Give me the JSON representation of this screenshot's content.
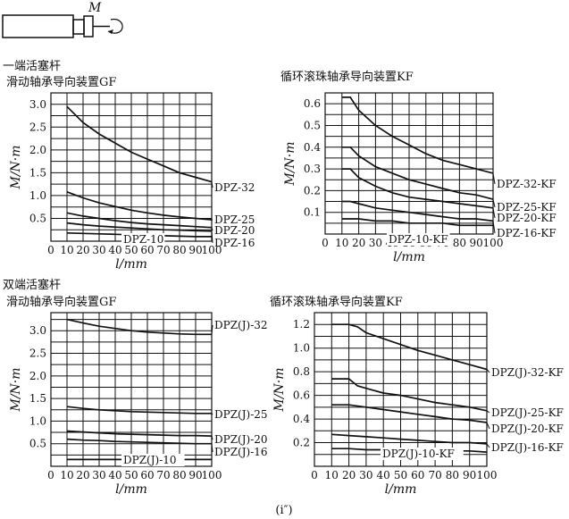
{
  "figure_label": "(i″)",
  "moment_symbol": "M",
  "sections": [
    {
      "title": "一端活塞杆"
    },
    {
      "title": "双端活塞杆"
    }
  ],
  "chart_data": [
    {
      "type": "line",
      "title": "滑动轴承导向装置GF",
      "xlabel": "l/mm",
      "ylabel": "M/N·m",
      "xlim": [
        0,
        100
      ],
      "ylim": [
        0,
        3.25
      ],
      "x_ticks": [
        0,
        10,
        20,
        30,
        40,
        50,
        60,
        70,
        80,
        90,
        100
      ],
      "y_ticks": [
        0.5,
        1.0,
        1.5,
        2.0,
        2.5,
        3.0
      ],
      "y_tick_labels": [
        "0.5",
        "1.0",
        "1.5",
        "2.0",
        "2.5",
        "3.0"
      ],
      "grid": true,
      "series": [
        {
          "name": "DPZ-32",
          "x": [
            10,
            20,
            30,
            40,
            50,
            60,
            70,
            80,
            90,
            100
          ],
          "values": [
            2.95,
            2.6,
            2.35,
            2.15,
            1.95,
            1.8,
            1.65,
            1.5,
            1.4,
            1.3
          ]
        },
        {
          "name": "DPZ-25",
          "x": [
            10,
            20,
            30,
            40,
            50,
            60,
            70,
            80,
            90,
            100
          ],
          "values": [
            1.08,
            0.95,
            0.84,
            0.76,
            0.68,
            0.62,
            0.57,
            0.53,
            0.5,
            0.47
          ]
        },
        {
          "name": "DPZ-20",
          "x": [
            10,
            20,
            30,
            40,
            50,
            60,
            70,
            80,
            90,
            100
          ],
          "values": [
            0.62,
            0.55,
            0.5,
            0.45,
            0.41,
            0.38,
            0.36,
            0.34,
            0.32,
            0.3
          ]
        },
        {
          "name": "DPZ-16",
          "x": [
            10,
            20,
            30,
            40,
            50,
            60,
            70,
            80,
            90,
            100
          ],
          "values": [
            0.4,
            0.36,
            0.33,
            0.31,
            0.29,
            0.27,
            0.25,
            0.24,
            0.23,
            0.22
          ]
        },
        {
          "name": "DPZ-10",
          "x": [
            10,
            20,
            30,
            40,
            50,
            60,
            70,
            80,
            90,
            100
          ],
          "values": [
            0.18,
            0.17,
            0.16,
            0.15,
            0.14,
            0.13,
            0.12,
            0.11,
            0.1,
            0.1
          ]
        }
      ]
    },
    {
      "type": "line",
      "title": "循环滚珠轴承导向装置KF",
      "xlabel": "l/mm",
      "ylabel": "M/N·m",
      "xlim": [
        0,
        100
      ],
      "ylim": [
        0,
        0.65
      ],
      "x_ticks": [
        0,
        10,
        20,
        30,
        40,
        50,
        60,
        70,
        80,
        90,
        100
      ],
      "y_ticks": [
        0.1,
        0.2,
        0.3,
        0.4,
        0.5,
        0.6
      ],
      "y_tick_labels": [
        "0.1",
        "0.2",
        "0.3",
        "0.4",
        "0.5",
        "0.6"
      ],
      "grid": true,
      "series": [
        {
          "name": "DPZ-32-KF",
          "x": [
            10,
            15,
            20,
            30,
            40,
            50,
            60,
            70,
            80,
            90,
            100
          ],
          "values": [
            0.63,
            0.63,
            0.57,
            0.5,
            0.45,
            0.41,
            0.37,
            0.34,
            0.32,
            0.3,
            0.28
          ]
        },
        {
          "name": "DPZ-25-KF",
          "x": [
            10,
            15,
            20,
            30,
            40,
            50,
            60,
            70,
            80,
            90,
            100
          ],
          "values": [
            0.4,
            0.4,
            0.36,
            0.31,
            0.28,
            0.25,
            0.23,
            0.21,
            0.19,
            0.18,
            0.16
          ]
        },
        {
          "name": "DPZ-20-KF",
          "x": [
            10,
            15,
            20,
            30,
            40,
            50,
            60,
            70,
            80,
            90,
            100
          ],
          "values": [
            0.3,
            0.3,
            0.26,
            0.22,
            0.19,
            0.17,
            0.16,
            0.15,
            0.14,
            0.13,
            0.12
          ]
        },
        {
          "name": "DPZ-16-KF",
          "x": [
            10,
            15,
            20,
            30,
            40,
            50,
            60,
            70,
            80,
            90,
            100
          ],
          "values": [
            0.15,
            0.15,
            0.14,
            0.12,
            0.11,
            0.1,
            0.09,
            0.08,
            0.07,
            0.07,
            0.06
          ]
        },
        {
          "name": "DPZ-10-KF",
          "x": [
            10,
            20,
            30,
            40,
            50,
            60,
            70,
            80,
            90,
            100
          ],
          "values": [
            0.07,
            0.07,
            0.06,
            0.06,
            0.05,
            0.05,
            0.05,
            0.04,
            0.04,
            0.04
          ]
        }
      ]
    },
    {
      "type": "line",
      "title": "滑动轴承导向装置GF",
      "xlabel": "l/mm",
      "ylabel": "M/N·m",
      "xlim": [
        0,
        100
      ],
      "ylim": [
        0,
        3.4
      ],
      "x_ticks": [
        0,
        10,
        20,
        30,
        40,
        50,
        60,
        70,
        80,
        90,
        100
      ],
      "y_ticks": [
        0.5,
        1.0,
        1.5,
        2.0,
        2.5,
        3.0
      ],
      "y_tick_labels": [
        "0.5",
        "1.0",
        "1.5",
        "2.0",
        "2.5",
        "3.0"
      ],
      "grid": true,
      "series": [
        {
          "name": "DPZ(J)-32",
          "x": [
            10,
            20,
            30,
            40,
            50,
            60,
            70,
            80,
            90,
            100
          ],
          "values": [
            3.25,
            3.17,
            3.1,
            3.05,
            3.0,
            2.97,
            2.95,
            2.93,
            2.92,
            2.92
          ]
        },
        {
          "name": "DPZ(J)-25",
          "x": [
            10,
            20,
            30,
            40,
            50,
            60,
            70,
            80,
            90,
            100
          ],
          "values": [
            1.32,
            1.28,
            1.25,
            1.23,
            1.21,
            1.2,
            1.19,
            1.18,
            1.17,
            1.17
          ]
        },
        {
          "name": "DPZ(J)-20",
          "x": [
            10,
            20,
            30,
            40,
            50,
            60,
            70,
            80,
            90,
            100
          ],
          "values": [
            0.78,
            0.76,
            0.74,
            0.72,
            0.71,
            0.7,
            0.69,
            0.68,
            0.68,
            0.67
          ]
        },
        {
          "name": "DPZ(J)-16",
          "x": [
            10,
            20,
            30,
            40,
            50,
            60,
            70,
            80,
            90,
            100
          ],
          "values": [
            0.6,
            0.58,
            0.57,
            0.55,
            0.54,
            0.53,
            0.52,
            0.51,
            0.5,
            0.5
          ]
        },
        {
          "name": "DPZ(J)-10",
          "x": [
            10,
            20,
            30,
            40,
            50,
            60,
            70,
            80,
            90,
            100
          ],
          "values": [
            0.15,
            0.15,
            0.15,
            0.15,
            0.15,
            0.15,
            0.15,
            0.15,
            0.15,
            0.15
          ]
        }
      ]
    },
    {
      "type": "line",
      "title": "循环滚珠轴承导向装置KF",
      "xlabel": "l/mm",
      "ylabel": "M/N·m",
      "xlim": [
        0,
        100
      ],
      "ylim": [
        0,
        1.3
      ],
      "x_ticks": [
        0,
        10,
        20,
        30,
        40,
        50,
        60,
        70,
        80,
        90,
        100
      ],
      "y_ticks": [
        0.2,
        0.4,
        0.6,
        0.8,
        1.0,
        1.2
      ],
      "y_tick_labels": [
        "0.2",
        "0.4",
        "0.6",
        "0.8",
        "1.0",
        "1.2"
      ],
      "grid": true,
      "series": [
        {
          "name": "DPZ(J)-32-KF",
          "x": [
            10,
            20,
            25,
            30,
            40,
            50,
            60,
            70,
            80,
            90,
            100
          ],
          "values": [
            1.2,
            1.2,
            1.18,
            1.13,
            1.08,
            1.03,
            0.98,
            0.94,
            0.9,
            0.86,
            0.82
          ]
        },
        {
          "name": "DPZ(J)-25-KF",
          "x": [
            10,
            20,
            25,
            30,
            40,
            50,
            60,
            70,
            80,
            90,
            100
          ],
          "values": [
            0.74,
            0.74,
            0.68,
            0.66,
            0.62,
            0.6,
            0.57,
            0.54,
            0.52,
            0.5,
            0.47
          ]
        },
        {
          "name": "DPZ(J)-20-KF",
          "x": [
            10,
            20,
            30,
            40,
            50,
            60,
            70,
            80,
            90,
            100
          ],
          "values": [
            0.52,
            0.52,
            0.5,
            0.48,
            0.46,
            0.44,
            0.42,
            0.4,
            0.39,
            0.37
          ]
        },
        {
          "name": "DPZ(J)-16-KF",
          "x": [
            10,
            20,
            30,
            40,
            50,
            60,
            70,
            80,
            90,
            100
          ],
          "values": [
            0.27,
            0.26,
            0.25,
            0.24,
            0.23,
            0.22,
            0.21,
            0.2,
            0.2,
            0.19
          ]
        },
        {
          "name": "DPZ(J)-10-KF",
          "x": [
            10,
            20,
            30,
            40,
            50,
            60,
            70,
            80,
            90,
            100
          ],
          "values": [
            0.15,
            0.15,
            0.14,
            0.14,
            0.14,
            0.13,
            0.13,
            0.13,
            0.13,
            0.12
          ]
        }
      ]
    }
  ]
}
